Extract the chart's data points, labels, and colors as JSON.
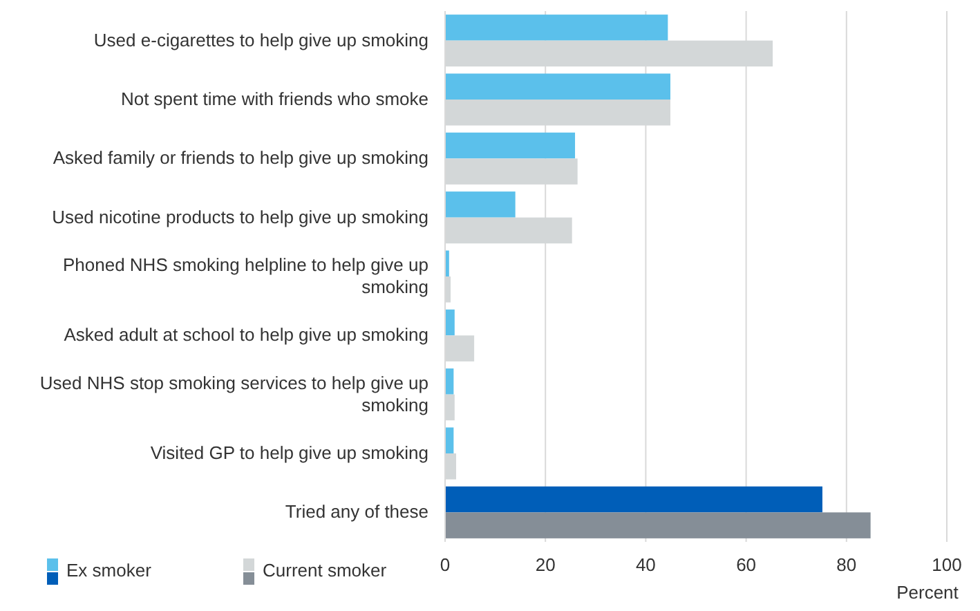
{
  "chart_data": {
    "type": "bar",
    "orientation": "horizontal",
    "categories": [
      "Used e-cigarettes to help give up smoking",
      "Not spent time with friends who smoke",
      "Asked family or friends to help give up smoking",
      "Used nicotine products to help give up smoking",
      "Phoned NHS smoking helpline to help give up smoking",
      "Asked adult at school to help give up smoking",
      "Used NHS stop smoking services to help give up smoking",
      "Visited GP to help give up smoking",
      "Tried any of these"
    ],
    "series": [
      {
        "name": "Ex smoker",
        "color": "#5bc0eb",
        "colors": [
          "#5bc0eb",
          "#5bc0eb",
          "#5bc0eb",
          "#5bc0eb",
          "#5bc0eb",
          "#5bc0eb",
          "#5bc0eb",
          "#5bc0eb",
          "#005eb8"
        ],
        "values": [
          44.4,
          44.9,
          25.9,
          14,
          0.8,
          1.9,
          1.7,
          1.7,
          75.2
        ]
      },
      {
        "name": "Current smoker",
        "color": "#d3d7d8",
        "colors": [
          "#d3d7d8",
          "#d3d7d8",
          "#d3d7d8",
          "#d3d7d8",
          "#d3d7d8",
          "#d3d7d8",
          "#d3d7d8",
          "#d3d7d8",
          "#858e97"
        ],
        "values": [
          65.3,
          44.9,
          26.4,
          25.3,
          1.1,
          5.8,
          1.9,
          2.2,
          84.8
        ]
      }
    ],
    "xlim": [
      0,
      100
    ],
    "xticks": [
      0,
      20,
      40,
      60,
      80,
      100
    ],
    "xlabel": "Percent",
    "grid": "x",
    "legend": "bottom left"
  }
}
